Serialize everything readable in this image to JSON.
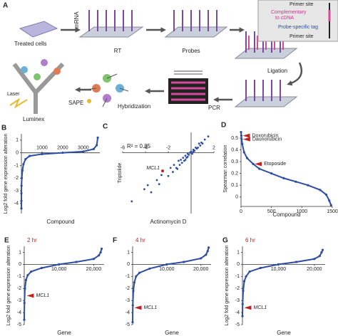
{
  "diagram": {
    "label": "A",
    "treated_cells": "Treated cells",
    "mrna": "mRNA",
    "rt": "RT",
    "probes": "Probes",
    "inset": {
      "primer_top": "Primer site",
      "complementary_1": "Complementary",
      "complementary_2": "to cDNA",
      "tag": "Probe-specific tag",
      "primer_bottom": "Primer site"
    },
    "ligation": "Ligation",
    "pcr": "PCR",
    "hybridization": "Hybridization",
    "sape": "SAPE",
    "laser": "Laser",
    "luminex": "Luminex"
  },
  "chart_data": [
    {
      "type": "line",
      "label": "B",
      "x_label": "Compound",
      "y_label": "Log2 fold gene expression alteration",
      "color": "#2c4da3",
      "x": [
        0,
        0,
        0,
        5,
        20,
        50,
        100,
        200,
        400,
        1000,
        2000,
        3000,
        3500,
        3650,
        3700
      ],
      "values": [
        -4.4,
        -3.8,
        -3.2,
        -2.6,
        -2,
        -1.4,
        -0.9,
        -0.5,
        -0.25,
        -0.1,
        0,
        0.1,
        0.3,
        0.6,
        1.2
      ],
      "xlim": [
        0,
        3800
      ],
      "xticks": [
        1000,
        2000,
        3000
      ],
      "ylim": [
        -4.8,
        1.5
      ],
      "yticks": [
        -4,
        -3,
        -2,
        -1,
        0,
        1
      ],
      "x_axis_at_zero": true,
      "xtick_labels": "above"
    },
    {
      "type": "scatter",
      "label": "C",
      "x_label": "Actinomycin D",
      "y_label": "Triptolide",
      "note": "R² = 0.85",
      "color": "#2c4da3",
      "x": [
        -5.2,
        -4.1,
        -3.5,
        -3,
        -2.8,
        -2.6,
        -2,
        -1.8,
        -1.6,
        -1.5,
        -1.3,
        -1.1,
        -1,
        -0.9,
        -0.8,
        -0.7,
        -0.6,
        -0.5,
        -0.5,
        -0.4,
        -0.3,
        -0.3,
        -0.2,
        -0.1,
        0,
        0.1,
        0.2,
        0.2,
        0.3,
        0.4,
        0.5,
        0.6,
        0.7,
        0.8,
        0.9,
        1,
        1.2,
        1.5,
        -3.8,
        -1.2
      ],
      "values": [
        -4.8,
        -3.6,
        -3.9,
        -2.7,
        -3.1,
        -2.2,
        -2.3,
        -1.5,
        -1.9,
        -1.2,
        -1.5,
        -0.8,
        -1.2,
        -0.7,
        -1,
        -0.5,
        -0.8,
        -0.3,
        -0.7,
        -0.5,
        -0.1,
        -0.4,
        -0.2,
        0,
        0.1,
        -0.1,
        0.3,
        0.1,
        0.2,
        0.5,
        0.4,
        0.5,
        0.9,
        0.7,
        1,
        0.9,
        1.3,
        1.6,
        -3.2,
        -1.6
      ],
      "annotations": [
        {
          "text": "MCL1",
          "x": -2.5,
          "y": -1.8
        }
      ],
      "xlim": [
        -6,
        2
      ],
      "xticks": [
        -6,
        -4,
        -2,
        2
      ],
      "ylim": [
        -6,
        2
      ],
      "yticks": [],
      "x_axis_at_zero": true,
      "y_axis_at_zero": true,
      "xtick_labels": "above"
    },
    {
      "type": "line",
      "label": "D",
      "x_label": "Compound",
      "y_label": "Spearman correlation",
      "color": "#2c4da3",
      "x": [
        0,
        5,
        10,
        20,
        50,
        100,
        200,
        300,
        500,
        700,
        900,
        1100,
        1300,
        1400,
        1450,
        1480
      ],
      "values": [
        0.55,
        0.52,
        0.49,
        0.45,
        0.38,
        0.33,
        0.28,
        0.24,
        0.2,
        0.16,
        0.13,
        0.1,
        0.06,
        0.02,
        -0.03,
        -0.07
      ],
      "annotations": [
        {
          "text": "Doxorubicin",
          "x": 5,
          "y": 0.52
        },
        {
          "text": "Daunorubicin",
          "x": 10,
          "y": 0.49
        },
        {
          "text": "Etoposide",
          "x": 200,
          "y": 0.28
        }
      ],
      "xlim": [
        0,
        1500
      ],
      "xticks": [
        0,
        500,
        1000,
        1500
      ],
      "ylim": [
        -0.08,
        0.56
      ],
      "yticks": [
        0,
        0.1,
        0.2,
        0.3,
        0.4,
        0.5
      ],
      "xtick_labels": "below"
    },
    {
      "type": "line",
      "label": "E",
      "subtitle": "2 hr",
      "x_label": "Gene",
      "y_label": "Log2 fold gene expression alteration",
      "color": "#2c4da3",
      "x": [
        0,
        50,
        200,
        500,
        1000,
        2000,
        5000,
        10000,
        15000,
        20000,
        21500,
        22000,
        22300
      ],
      "values": [
        -4.6,
        -3.2,
        -2,
        -1.3,
        -0.9,
        -0.6,
        -0.3,
        0,
        0.2,
        0.45,
        0.75,
        1,
        1.3
      ],
      "annotations": [
        {
          "text": "MCL1",
          "x": 300,
          "y": -2.6
        }
      ],
      "xlim": [
        0,
        23000
      ],
      "xticks": [
        {
          "value": 10000,
          "label": "10,000"
        },
        {
          "value": 20000,
          "label": "20,000"
        }
      ],
      "ylim": [
        -5,
        1.5
      ],
      "yticks": [
        -5,
        -4,
        -3,
        -2,
        -1,
        0,
        1
      ],
      "x_axis_at_zero": true,
      "xtick_labels": "below"
    },
    {
      "type": "line",
      "label": "F",
      "subtitle": "4 hr",
      "x_label": "Gene",
      "color": "#2c4da3",
      "x": [
        0,
        50,
        200,
        500,
        1000,
        2000,
        5000,
        10000,
        15000,
        20000,
        21500,
        22000,
        22300
      ],
      "values": [
        -4.8,
        -3.4,
        -2.2,
        -1.5,
        -1,
        -0.7,
        -0.35,
        0,
        0.2,
        0.5,
        0.8,
        1.1,
        1.4
      ],
      "annotations": [
        {
          "text": "MCL1",
          "x": 100,
          "y": -3.6
        }
      ],
      "xlim": [
        0,
        23000
      ],
      "xticks": [
        {
          "value": 10000,
          "label": "10,000"
        },
        {
          "value": 20000,
          "label": "20,000"
        }
      ],
      "ylim": [
        -5,
        1.5
      ],
      "yticks": [
        -5,
        -4,
        -3,
        -2,
        -1,
        0,
        1
      ],
      "x_axis_at_zero": true,
      "xtick_labels": "below"
    },
    {
      "type": "line",
      "label": "G",
      "subtitle": "6 hr",
      "x_label": "Gene",
      "y_label": "Log2 fold gene expression alteration",
      "color": "#2c4da3",
      "x": [
        0,
        50,
        200,
        500,
        1000,
        2000,
        5000,
        10000,
        15000,
        20000,
        21500,
        22000,
        22300
      ],
      "values": [
        -4.3,
        -3.3,
        -2.2,
        -1.4,
        -1,
        -0.6,
        -0.3,
        0,
        0.2,
        0.45,
        0.7,
        1,
        1.2
      ],
      "annotations": [
        {
          "text": "MCL1",
          "x": 100,
          "y": -3.6
        }
      ],
      "xlim": [
        0,
        23000
      ],
      "xticks": [
        {
          "value": 10000,
          "label": "10,000"
        },
        {
          "value": 20000,
          "label": "20,000"
        }
      ],
      "ylim": [
        -5,
        1.5
      ],
      "yticks": [
        -5,
        -4,
        -3,
        -2,
        -1,
        0,
        1
      ],
      "x_axis_at_zero": true,
      "xtick_labels": "below"
    }
  ]
}
